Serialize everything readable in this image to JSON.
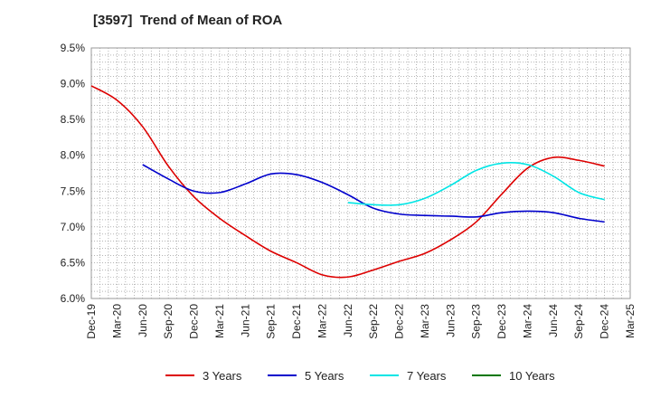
{
  "title": "[3597]  Trend of Mean of ROA",
  "chart_data": {
    "type": "line",
    "x_ticks": [
      "Dec-19",
      "Mar-20",
      "Jun-20",
      "Sep-20",
      "Dec-20",
      "Mar-21",
      "Jun-21",
      "Sep-21",
      "Dec-21",
      "Mar-22",
      "Jun-22",
      "Sep-22",
      "Dec-22",
      "Mar-23",
      "Jun-23",
      "Sep-23",
      "Dec-23",
      "Mar-24",
      "Jun-24",
      "Sep-24",
      "Dec-24",
      "Mar-25"
    ],
    "y_ticks": [
      "6.0%",
      "6.5%",
      "7.0%",
      "7.5%",
      "8.0%",
      "8.5%",
      "9.0%",
      "9.5%"
    ],
    "ylim": [
      6.0,
      9.5
    ],
    "grid": true,
    "legend_position": "bottom",
    "series": [
      {
        "name": "3 Years",
        "color": "#dd0000",
        "start_index": 0,
        "values": [
          8.97,
          8.77,
          8.4,
          7.85,
          7.42,
          7.12,
          6.88,
          6.66,
          6.5,
          6.33,
          6.3,
          6.4,
          6.52,
          6.63,
          6.82,
          7.07,
          7.46,
          7.82,
          7.97,
          7.93,
          7.85
        ]
      },
      {
        "name": "5 Years",
        "color": "#0000cc",
        "start_index": 2,
        "values": [
          7.87,
          7.67,
          7.5,
          7.48,
          7.6,
          7.74,
          7.73,
          7.62,
          7.45,
          7.26,
          7.18,
          7.16,
          7.15,
          7.14,
          7.2,
          7.22,
          7.2,
          7.12,
          7.07
        ]
      },
      {
        "name": "7 Years",
        "color": "#00e5e5",
        "start_index": 10,
        "values": [
          7.34,
          7.31,
          7.31,
          7.4,
          7.58,
          7.79,
          7.89,
          7.87,
          7.71,
          7.48,
          7.38
        ]
      },
      {
        "name": "10 Years",
        "color": "#007700",
        "start_index": 0,
        "values": []
      }
    ]
  }
}
